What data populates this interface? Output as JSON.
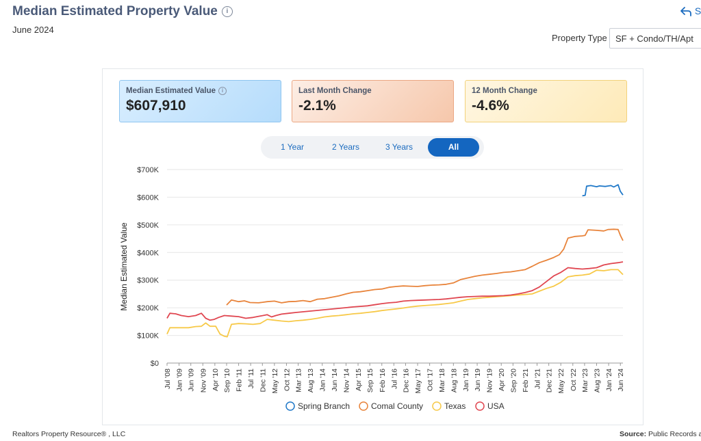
{
  "header": {
    "title": "Median Estimated Property Value",
    "subtitle": "June 2024",
    "share_label": "S",
    "property_type_label": "Property Type",
    "property_type_value": "SF + Condo/TH/Apt"
  },
  "cards": [
    {
      "label": "Median Estimated Value",
      "value": "$607,910"
    },
    {
      "label": "Last Month Change",
      "value": "-2.1%"
    },
    {
      "label": "12 Month Change",
      "value": "-4.6%"
    }
  ],
  "tabs": [
    {
      "label": "1 Year"
    },
    {
      "label": "2 Years"
    },
    {
      "label": "3 Years"
    },
    {
      "label": "All"
    }
  ],
  "footer": {
    "left": "Realtors Property Resource® , LLC",
    "source_label": "Source:",
    "source_value": "Public Records ar"
  },
  "colors": {
    "spring_branch": "#1f78c8",
    "comal_county": "#e8833a",
    "texas": "#f7c948",
    "usa": "#e04650"
  },
  "chart_data": {
    "type": "line",
    "title": "Median Estimated Property Value",
    "ylabel": "Median Estimated Value",
    "xlabel": "",
    "ylim": [
      0,
      700000
    ],
    "yticks": [
      0,
      100000,
      200000,
      300000,
      400000,
      500000,
      600000,
      700000
    ],
    "ytick_labels": [
      "$0",
      "$100K",
      "$200K",
      "$300K",
      "$400K",
      "$500K",
      "$600K",
      "$700K"
    ],
    "x_range": [
      2008.5,
      2024.42
    ],
    "xtick_labels": [
      "Jul '08",
      "Jan '09",
      "Jun '09",
      "Nov '09",
      "Apr '10",
      "Sep '10",
      "Feb '11",
      "Jul '11",
      "Dec '11",
      "May '12",
      "Oct '12",
      "Mar '13",
      "Aug '13",
      "Jan '14",
      "Jun '14",
      "Nov '14",
      "Apr '15",
      "Sep '15",
      "Feb '16",
      "Jul '16",
      "Dec '16",
      "May '17",
      "Oct '17",
      "Mar '18",
      "Aug '18",
      "Jan '19",
      "Jun '19",
      "Nov '19",
      "Apr '20",
      "Sep '20",
      "Feb '21",
      "Jul '21",
      "Dec '21",
      "May '22",
      "Oct '22",
      "Mar '23",
      "Aug '23",
      "Jan '24",
      "Jun '24"
    ],
    "xtick_values": [
      2008.5,
      2008.92,
      2009.33,
      2009.75,
      2010.17,
      2010.58,
      2011.0,
      2011.42,
      2011.83,
      2012.25,
      2012.67,
      2013.08,
      2013.5,
      2013.92,
      2014.33,
      2014.75,
      2015.17,
      2015.58,
      2016.0,
      2016.42,
      2016.83,
      2017.25,
      2017.67,
      2018.08,
      2018.5,
      2018.92,
      2019.33,
      2019.75,
      2020.17,
      2020.58,
      2021.0,
      2021.42,
      2021.83,
      2022.25,
      2022.67,
      2023.08,
      2023.5,
      2023.92,
      2024.33
    ],
    "legend_position": "bottom",
    "series": [
      {
        "name": "Spring Branch",
        "color_key": "spring_branch",
        "x": [
          2023.0,
          2023.1,
          2023.15,
          2023.3,
          2023.5,
          2023.6,
          2023.8,
          2024.0,
          2024.1,
          2024.25,
          2024.33,
          2024.42
        ],
        "values": [
          605000,
          607000,
          640000,
          642000,
          638000,
          641000,
          639000,
          642000,
          637000,
          645000,
          621000,
          607910
        ]
      },
      {
        "name": "Comal County",
        "color_key": "comal_county",
        "x": [
          2010.58,
          2010.75,
          2011.0,
          2011.2,
          2011.4,
          2011.7,
          2012.0,
          2012.25,
          2012.5,
          2012.75,
          2013.0,
          2013.25,
          2013.5,
          2013.75,
          2014.0,
          2014.25,
          2014.5,
          2014.75,
          2015.0,
          2015.25,
          2015.5,
          2015.75,
          2016.0,
          2016.25,
          2016.5,
          2016.75,
          2017.0,
          2017.25,
          2017.5,
          2017.75,
          2018.0,
          2018.25,
          2018.5,
          2018.75,
          2019.0,
          2019.25,
          2019.5,
          2019.75,
          2020.0,
          2020.25,
          2020.5,
          2020.75,
          2021.0,
          2021.25,
          2021.5,
          2021.75,
          2022.0,
          2022.2,
          2022.35,
          2022.5,
          2022.75,
          2023.0,
          2023.1,
          2023.2,
          2023.5,
          2023.75,
          2023.9,
          2024.1,
          2024.25,
          2024.33,
          2024.42
        ],
        "values": [
          210000,
          228000,
          222000,
          225000,
          219000,
          218000,
          222000,
          224000,
          218000,
          222000,
          223000,
          226000,
          222000,
          231000,
          233000,
          238000,
          243000,
          250000,
          256000,
          258000,
          262000,
          266000,
          268000,
          274000,
          277000,
          279000,
          278000,
          277000,
          280000,
          282000,
          283000,
          285000,
          290000,
          302000,
          308000,
          314000,
          318000,
          321000,
          324000,
          328000,
          330000,
          334000,
          338000,
          350000,
          363000,
          372000,
          382000,
          392000,
          412000,
          452000,
          458000,
          460000,
          462000,
          482000,
          480000,
          478000,
          483000,
          484000,
          483000,
          462000,
          443000
        ]
      },
      {
        "name": "Texas",
        "color_key": "texas",
        "x": [
          2008.5,
          2008.6,
          2009.0,
          2009.25,
          2009.5,
          2009.7,
          2009.85,
          2010.0,
          2010.1,
          2010.2,
          2010.35,
          2010.5,
          2010.6,
          2010.75,
          2011.0,
          2011.25,
          2011.5,
          2011.75,
          2012.0,
          2012.25,
          2012.5,
          2012.75,
          2013.0,
          2013.25,
          2013.5,
          2013.75,
          2014.0,
          2014.25,
          2014.5,
          2014.75,
          2015.0,
          2015.25,
          2015.5,
          2015.75,
          2016.0,
          2016.25,
          2016.5,
          2016.75,
          2017.0,
          2017.25,
          2017.5,
          2017.75,
          2018.0,
          2018.25,
          2018.5,
          2018.75,
          2019.0,
          2019.25,
          2019.5,
          2019.75,
          2020.0,
          2020.25,
          2020.5,
          2020.75,
          2021.0,
          2021.25,
          2021.5,
          2021.75,
          2022.0,
          2022.25,
          2022.5,
          2022.75,
          2023.0,
          2023.25,
          2023.5,
          2023.75,
          2024.0,
          2024.25,
          2024.42
        ],
        "values": [
          105000,
          128000,
          128000,
          128000,
          132000,
          133000,
          145000,
          133000,
          133000,
          133000,
          105000,
          97000,
          95000,
          140000,
          143000,
          142000,
          140000,
          143000,
          158000,
          155000,
          152000,
          150000,
          153000,
          155000,
          158000,
          162000,
          167000,
          170000,
          172000,
          175000,
          178000,
          180000,
          183000,
          186000,
          190000,
          193000,
          196000,
          199000,
          203000,
          206000,
          208000,
          210000,
          212000,
          215000,
          218000,
          224000,
          230000,
          233000,
          236000,
          238000,
          240000,
          242000,
          244000,
          246000,
          248000,
          250000,
          260000,
          270000,
          278000,
          292000,
          312000,
          316000,
          318000,
          322000,
          336000,
          334000,
          338000,
          338000,
          320000
        ]
      },
      {
        "name": "USA",
        "color_key": "usa",
        "x": [
          2008.5,
          2008.6,
          2008.8,
          2009.0,
          2009.25,
          2009.5,
          2009.7,
          2009.85,
          2010.0,
          2010.15,
          2010.3,
          2010.5,
          2010.75,
          2011.0,
          2011.25,
          2011.5,
          2011.75,
          2012.0,
          2012.15,
          2012.3,
          2012.5,
          2012.75,
          2013.0,
          2013.5,
          2014.0,
          2014.5,
          2015.0,
          2015.5,
          2015.75,
          2016.0,
          2016.25,
          2016.5,
          2016.75,
          2017.0,
          2017.25,
          2017.5,
          2017.75,
          2018.0,
          2018.25,
          2018.5,
          2018.75,
          2019.0,
          2019.25,
          2019.5,
          2019.75,
          2020.0,
          2020.25,
          2020.5,
          2020.75,
          2021.0,
          2021.25,
          2021.5,
          2021.75,
          2022.0,
          2022.25,
          2022.5,
          2022.75,
          2023.0,
          2023.25,
          2023.5,
          2023.75,
          2024.0,
          2024.25,
          2024.42
        ],
        "values": [
          162000,
          180000,
          178000,
          172000,
          168000,
          172000,
          180000,
          162000,
          155000,
          158000,
          165000,
          172000,
          170000,
          168000,
          162000,
          165000,
          170000,
          175000,
          167000,
          172000,
          177000,
          180000,
          183000,
          188000,
          193000,
          198000,
          203000,
          207000,
          211000,
          215000,
          218000,
          220000,
          224000,
          226000,
          227000,
          228000,
          229000,
          230000,
          232000,
          235000,
          238000,
          240000,
          241000,
          242000,
          242000,
          243000,
          244000,
          246000,
          250000,
          255000,
          262000,
          275000,
          295000,
          315000,
          328000,
          345000,
          342000,
          340000,
          342000,
          345000,
          355000,
          360000,
          363000,
          366000
        ]
      }
    ]
  }
}
